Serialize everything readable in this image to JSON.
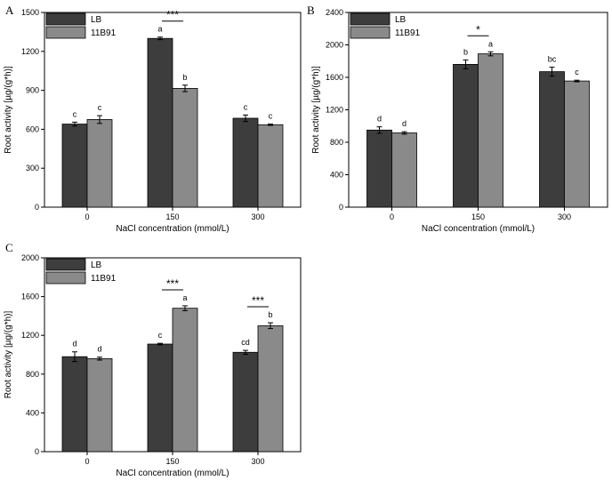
{
  "chart_data": [
    {
      "panel": "A",
      "type": "bar",
      "categories": [
        "0",
        "150",
        "300"
      ],
      "xlabel": "NaCl concentration (mmol/L)",
      "ylabel": "Root activity [µg/(g*h)]",
      "ylim": [
        0,
        1500
      ],
      "yticks": [
        0,
        300,
        600,
        900,
        1200,
        1500
      ],
      "legend": [
        "LB",
        "11B91"
      ],
      "colors": [
        "#3d3d3d",
        "#8a8a8a"
      ],
      "series": [
        {
          "name": "LB",
          "values": [
            640,
            1300,
            685
          ],
          "errors": [
            15,
            10,
            25
          ],
          "labels": [
            "c",
            "a",
            "c"
          ]
        },
        {
          "name": "11B91",
          "values": [
            675,
            915,
            635
          ],
          "errors": [
            30,
            25,
            5
          ],
          "labels": [
            "c",
            "b",
            "c"
          ]
        }
      ],
      "significance": [
        {
          "category": "150",
          "text": "***"
        }
      ]
    },
    {
      "panel": "B",
      "type": "bar",
      "categories": [
        "0",
        "150",
        "300"
      ],
      "xlabel": "NaCl concentration (mmol/L)",
      "ylabel": "Root activity [µg/(g*h)]",
      "ylim": [
        0,
        2400
      ],
      "yticks": [
        0,
        400,
        800,
        1200,
        1600,
        2000,
        2400
      ],
      "legend": [
        "LB",
        "11B91"
      ],
      "colors": [
        "#3d3d3d",
        "#8a8a8a"
      ],
      "series": [
        {
          "name": "LB",
          "values": [
            950,
            1760,
            1670
          ],
          "errors": [
            40,
            55,
            55
          ],
          "labels": [
            "d",
            "b",
            "bc"
          ]
        },
        {
          "name": "11B91",
          "values": [
            915,
            1890,
            1555
          ],
          "errors": [
            15,
            25,
            10
          ],
          "labels": [
            "d",
            "a",
            "c"
          ]
        }
      ],
      "significance": [
        {
          "category": "150",
          "text": "*"
        }
      ]
    },
    {
      "panel": "C",
      "type": "bar",
      "categories": [
        "0",
        "150",
        "300"
      ],
      "xlabel": "NaCl concentration (mmol/L)",
      "ylabel": "Root activity [µg/(g*h)]",
      "ylim": [
        0,
        2000
      ],
      "yticks": [
        0,
        400,
        800,
        1200,
        1600,
        2000
      ],
      "legend": [
        "LB",
        "11B91"
      ],
      "colors": [
        "#3d3d3d",
        "#8a8a8a"
      ],
      "series": [
        {
          "name": "LB",
          "values": [
            980,
            1110,
            1025
          ],
          "errors": [
            50,
            8,
            20
          ],
          "labels": [
            "d",
            "c",
            "cd"
          ]
        },
        {
          "name": "11B91",
          "values": [
            960,
            1480,
            1300
          ],
          "errors": [
            15,
            25,
            30
          ],
          "labels": [
            "d",
            "a",
            "b"
          ]
        }
      ],
      "significance": [
        {
          "category": "150",
          "text": "***"
        },
        {
          "category": "300",
          "text": "***"
        }
      ]
    }
  ]
}
